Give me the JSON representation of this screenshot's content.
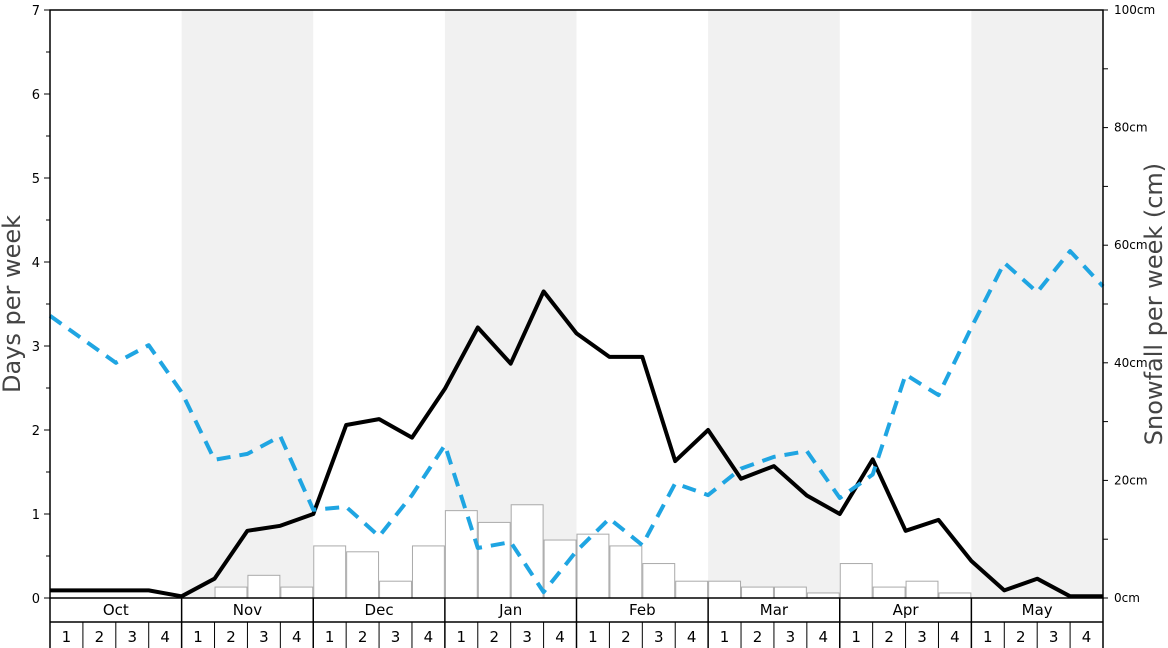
{
  "chart_data": {
    "type": "bar+line",
    "months": [
      "Oct",
      "Nov",
      "Dec",
      "Jan",
      "Feb",
      "Mar",
      "Apr",
      "May"
    ],
    "week_labels": [
      "1",
      "2",
      "3",
      "4"
    ],
    "x_weeks": 32,
    "y_left": {
      "label": "Days per week",
      "ylim": [
        0,
        7
      ],
      "ticks": [
        "0",
        "1",
        "2",
        "3",
        "4",
        "5",
        "6",
        "7"
      ]
    },
    "y_right": {
      "label": "Snowfall per week (cm)",
      "ylim": [
        0,
        100
      ],
      "ticks": [
        "0cm",
        "20cm",
        "40cm",
        "60cm",
        "80cm",
        "100cm"
      ]
    },
    "series": [
      {
        "kind": "bar",
        "axis": "left",
        "color": "#ffffff",
        "stroke": "#aaaaaa",
        "values": [
          0,
          0,
          0,
          0,
          0,
          0.13,
          0.27,
          0.13,
          0.62,
          0.55,
          0.2,
          0.62,
          1.04,
          0.9,
          1.11,
          0.69,
          0.76,
          0.62,
          0.41,
          0.2,
          0.2,
          0.13,
          0.13,
          0.06,
          0.41,
          0.13,
          0.2,
          0.06,
          0,
          0,
          0,
          0
        ]
      },
      {
        "kind": "line",
        "axis": "left",
        "style": "solid",
        "color": "#000000",
        "values": [
          0.09,
          0.09,
          0.09,
          0.09,
          0.02,
          0.23,
          0.8,
          0.86,
          1.0,
          2.06,
          2.13,
          1.91,
          2.49,
          3.22,
          2.79,
          3.65,
          3.15,
          2.87,
          2.87,
          1.63,
          2.0,
          1.42,
          1.57,
          1.22,
          1.0,
          1.65,
          0.8,
          0.93,
          0.44,
          0.09,
          0.23,
          0.02,
          0.02
        ]
      },
      {
        "kind": "line",
        "axis": "right",
        "style": "dashed",
        "color": "#1fa5e2",
        "values": [
          48,
          44,
          40,
          43,
          35,
          23.5,
          24.5,
          27.5,
          15,
          15.5,
          10.5,
          17.5,
          26,
          8.5,
          9.5,
          1,
          8,
          13.5,
          9,
          19.5,
          17.5,
          22,
          24,
          25,
          17,
          21,
          38,
          34.5,
          46,
          57,
          52,
          59,
          53
        ]
      }
    ],
    "shaded_months": [
      "Nov",
      "Jan",
      "Mar",
      "May"
    ]
  }
}
